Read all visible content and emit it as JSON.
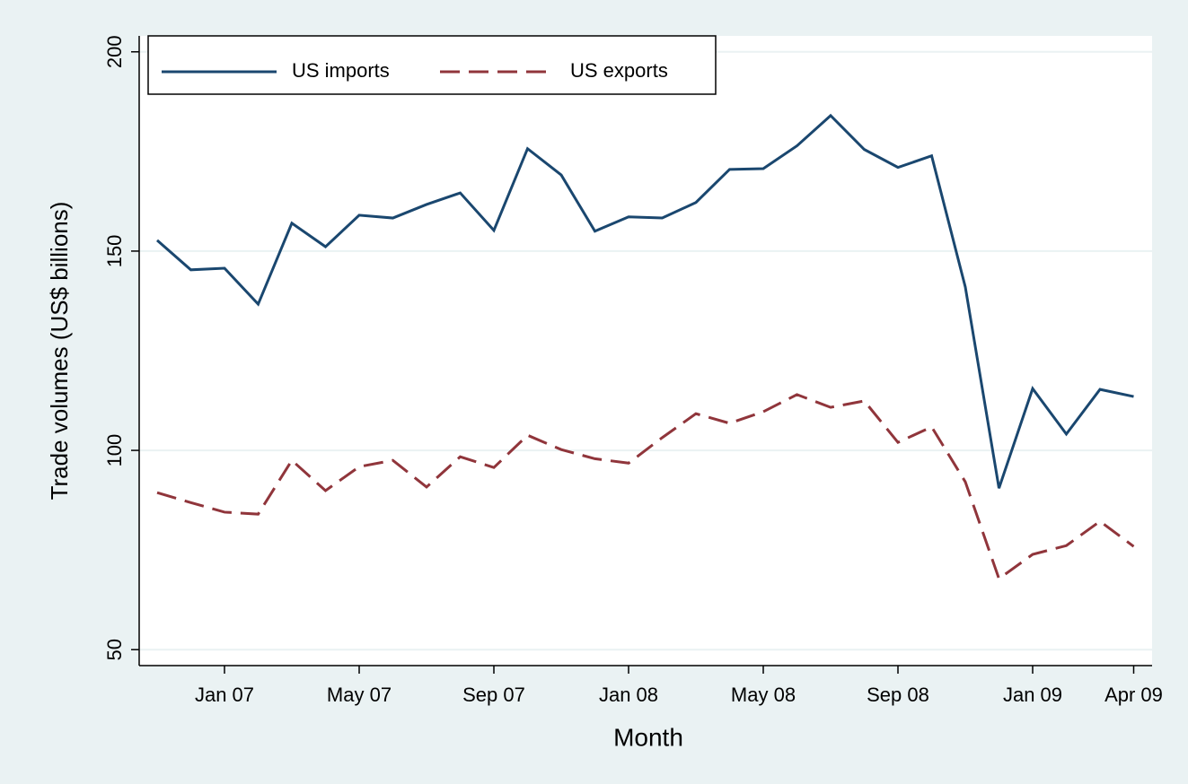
{
  "chart_data": {
    "type": "line",
    "y_label": "Trade volumes (US$ billions)",
    "x_label": "Month",
    "categories": [
      null,
      null,
      "Jan 07",
      null,
      null,
      null,
      "May 07",
      null,
      null,
      null,
      "Sep 07",
      null,
      null,
      null,
      "Jan 08",
      null,
      null,
      null,
      "May 08",
      null,
      null,
      null,
      "Sep 08",
      null,
      null,
      null,
      "Jan 09",
      null,
      null,
      "Apr 09"
    ],
    "series": [
      {
        "name": "US imports",
        "color": "#1a476f",
        "line_style": "solid",
        "values": [
          152.7,
          145.3,
          145.7,
          136.7,
          157,
          151.1,
          159,
          158.3,
          161.7,
          164.6,
          155.2,
          175.7,
          169.1,
          155,
          158.6,
          158.3,
          162.2,
          170.5,
          170.7,
          176.4,
          184,
          175.5,
          171,
          173.9,
          141,
          90.5,
          115.5,
          104.1,
          115.3,
          113.5
        ]
      },
      {
        "name": "US exports",
        "color": "#90353b",
        "line_style": "dashed",
        "values": [
          89.4,
          86.9,
          84.5,
          84,
          97.5,
          89.9,
          95.9,
          97.5,
          90.8,
          98.4,
          95.7,
          103.8,
          100.2,
          97.9,
          96.8,
          103.2,
          109.2,
          106.8,
          109.7,
          114,
          110.8,
          112.4,
          102,
          105.9,
          92.1,
          67.8,
          73.9,
          76.1,
          82.2,
          75.9
        ]
      }
    ],
    "ylim": [
      46,
      204
    ],
    "yticks": [
      50,
      100,
      150,
      200
    ],
    "grid": true,
    "legend": "top-left"
  }
}
